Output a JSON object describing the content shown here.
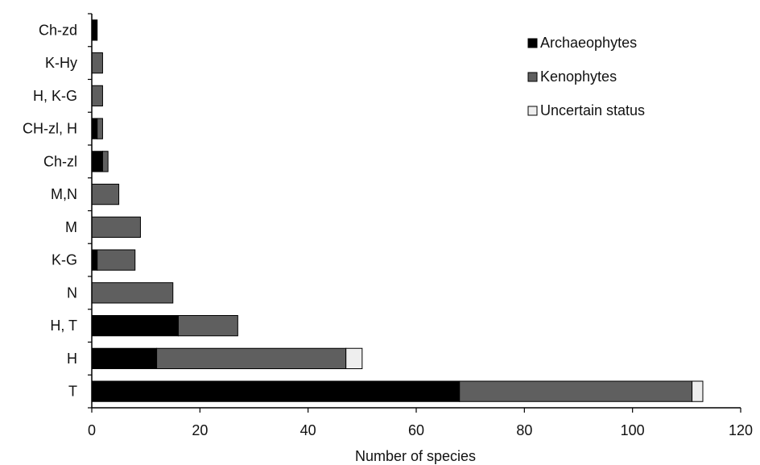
{
  "chart_data": {
    "type": "bar",
    "orientation": "horizontal",
    "stacked": true,
    "xlabel": "Number of species",
    "ylabel": "",
    "xlim": [
      0,
      120
    ],
    "xticks": [
      0,
      20,
      40,
      60,
      80,
      100,
      120
    ],
    "grid": false,
    "legend_position": "top-right",
    "categories": [
      "Ch-zd",
      "K-Hy",
      "H, K-G",
      "CH-zl, H",
      "Ch-zl",
      "M,N",
      "M",
      "K-G",
      "N",
      "H, T",
      "H",
      "T"
    ],
    "series": [
      {
        "name": "Archaeophytes",
        "color": "#000000",
        "values": [
          1,
          0,
          0,
          1,
          2,
          0,
          0,
          1,
          0,
          16,
          12,
          68
        ]
      },
      {
        "name": "Kenophytes",
        "color": "#5f5f5f",
        "values": [
          0,
          2,
          2,
          1,
          1,
          5,
          9,
          7,
          15,
          11,
          35,
          43
        ]
      },
      {
        "name": "Uncertain status",
        "color": "#eeeeee",
        "values": [
          0,
          0,
          0,
          0,
          0,
          0,
          0,
          0,
          0,
          0,
          3,
          2
        ]
      }
    ]
  }
}
